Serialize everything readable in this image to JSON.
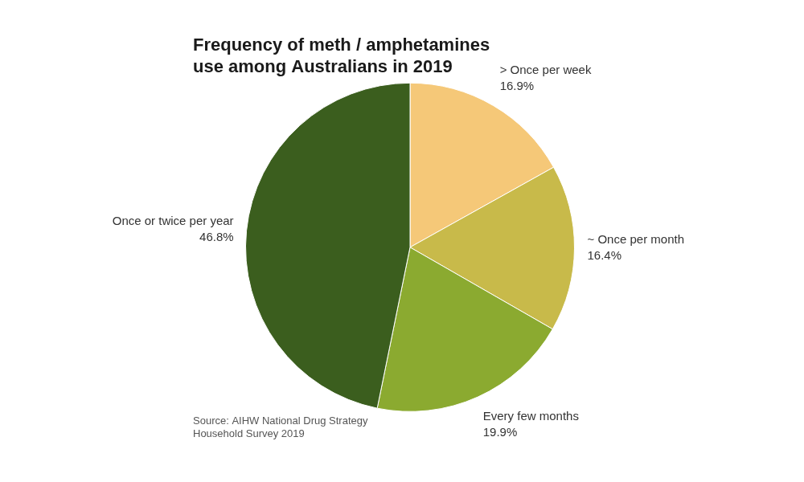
{
  "chart_data": {
    "type": "pie",
    "title": "Frequency of meth / amphetamines\nuse among Australians in 2019",
    "annotations": [
      "Source: AIHW National Drug Strategy\nHousehold Survey 2019"
    ],
    "categories": [
      "> Once per week",
      "~ Once per month",
      "Every few months",
      "Once or twice per year"
    ],
    "values": [
      16.9,
      16.4,
      19.9,
      46.8
    ],
    "value_labels": [
      "16.9%",
      "16.4%",
      "19.9%",
      "46.8%"
    ],
    "colors": [
      "#F5C878",
      "#C8BA4A",
      "#8BAA30",
      "#3B5E1E"
    ],
    "data_labels": true
  }
}
